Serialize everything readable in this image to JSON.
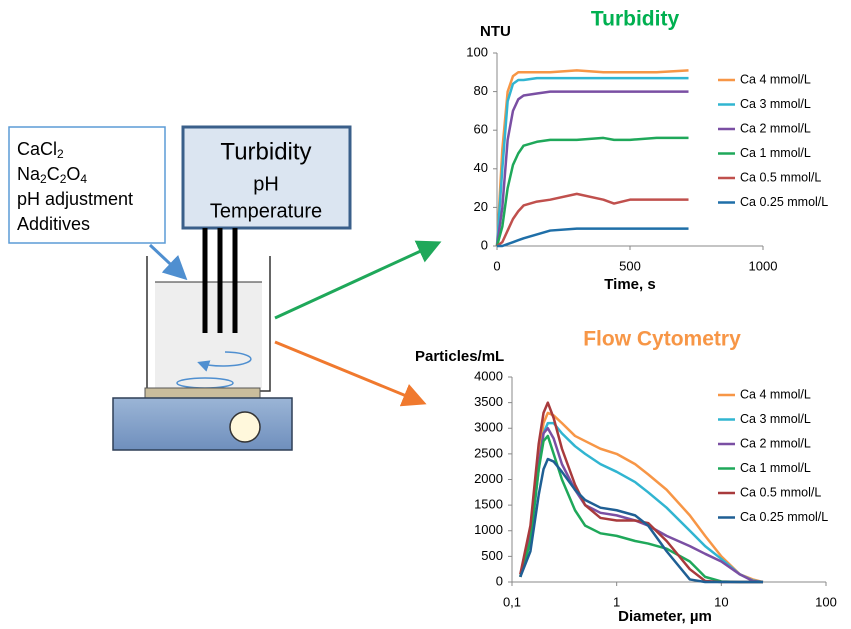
{
  "diagram": {
    "reagent_box": {
      "lines": [
        [
          "CaCl",
          "2"
        ],
        [
          "Na",
          "2",
          "C",
          "2",
          "O",
          "4"
        ],
        [
          "pH adjustment"
        ],
        [
          "Additives"
        ]
      ]
    },
    "probe_box": {
      "lines": [
        "Turbidity",
        "pH",
        "Temperature"
      ]
    }
  },
  "chart_data": [
    {
      "type": "line",
      "title": "Turbidity",
      "title_color": "#00b050",
      "y_label": "NTU",
      "x_label": "Time, s",
      "x": [
        0,
        20,
        40,
        60,
        80,
        100,
        150,
        200,
        300,
        400,
        440,
        500,
        600,
        720
      ],
      "xlim": [
        0,
        1000
      ],
      "xticks": [
        0,
        500,
        1000
      ],
      "ylim": [
        0,
        100
      ],
      "yticks": [
        0,
        20,
        40,
        60,
        80,
        100
      ],
      "legend": "upper right",
      "series": [
        {
          "name": "Ca 4 mmol/L",
          "color": "#f79646",
          "values": [
            0,
            50,
            80,
            88,
            90,
            90,
            90,
            90,
            91,
            90,
            90,
            90,
            90,
            91
          ]
        },
        {
          "name": "Ca 3 mmol/L",
          "color": "#31b5d1",
          "values": [
            0,
            40,
            75,
            84,
            86,
            86,
            87,
            87,
            87,
            87,
            87,
            87,
            87,
            87
          ]
        },
        {
          "name": "Ca 2 mmol/L",
          "color": "#7a4fa3",
          "values": [
            0,
            20,
            55,
            70,
            76,
            78,
            79,
            80,
            80,
            80,
            80,
            80,
            80,
            80
          ]
        },
        {
          "name": "Ca 1 mmol/L",
          "color": "#1fa85a",
          "values": [
            0,
            10,
            30,
            42,
            48,
            52,
            54,
            55,
            55,
            56,
            55,
            55,
            56,
            56
          ]
        },
        {
          "name": "Ca 0.5 mmol/L",
          "color": "#c0504d",
          "values": [
            0,
            2,
            8,
            14,
            18,
            21,
            23,
            24,
            27,
            24,
            22,
            24,
            24,
            24
          ]
        },
        {
          "name": "Ca 0.25 mmol/L",
          "color": "#1f6fa8",
          "values": [
            0,
            0,
            1,
            2,
            3,
            4,
            6,
            8,
            9,
            9,
            9,
            9,
            9,
            9
          ]
        }
      ]
    },
    {
      "type": "line",
      "title": "Flow Cytometry",
      "title_color": "#f79646",
      "y_label": "Particles/mL",
      "x_label": "Diameter, µm",
      "x": [
        0.12,
        0.15,
        0.18,
        0.2,
        0.22,
        0.25,
        0.3,
        0.4,
        0.5,
        0.7,
        1,
        1.5,
        2,
        3,
        5,
        7,
        10,
        15,
        20,
        25
      ],
      "x_log": true,
      "xlim": [
        0.1,
        100
      ],
      "xticks": [
        {
          "value": 0.1,
          "label": "0,1"
        },
        1,
        10,
        100
      ],
      "ylim": [
        0,
        4000
      ],
      "yticks": [
        0,
        500,
        1000,
        1500,
        2000,
        2500,
        3000,
        3500,
        4000
      ],
      "legend": "upper right",
      "series": [
        {
          "name": "Ca 4 mmol/L",
          "color": "#f79646",
          "values": [
            100,
            900,
            2400,
            3100,
            3300,
            3250,
            3100,
            2850,
            2750,
            2600,
            2500,
            2300,
            2100,
            1800,
            1300,
            900,
            500,
            150,
            50,
            0
          ]
        },
        {
          "name": "Ca 3 mmol/L",
          "color": "#31b5d1",
          "values": [
            100,
            800,
            2200,
            2900,
            3100,
            3100,
            2900,
            2650,
            2500,
            2300,
            2150,
            1950,
            1750,
            1450,
            1000,
            700,
            450,
            150,
            30,
            0
          ]
        },
        {
          "name": "Ca 2 mmol/L",
          "color": "#7a4fa3",
          "values": [
            100,
            900,
            2300,
            2900,
            3000,
            2800,
            2300,
            1800,
            1500,
            1350,
            1300,
            1200,
            1100,
            900,
            700,
            550,
            400,
            150,
            20,
            0
          ]
        },
        {
          "name": "Ca 1 mmol/L",
          "color": "#1fa85a",
          "values": [
            100,
            800,
            2200,
            2750,
            2850,
            2500,
            2000,
            1400,
            1100,
            950,
            900,
            800,
            750,
            650,
            400,
            100,
            10,
            0,
            0,
            0
          ]
        },
        {
          "name": "Ca 0.5 mmol/L",
          "color": "#a83a3c",
          "values": [
            150,
            1100,
            2700,
            3300,
            3500,
            3200,
            2600,
            1900,
            1500,
            1250,
            1200,
            1200,
            1150,
            800,
            250,
            20,
            0,
            0,
            0,
            0
          ]
        },
        {
          "name": "Ca 0.25 mmol/L",
          "color": "#1f5f94",
          "values": [
            100,
            600,
            1700,
            2200,
            2400,
            2350,
            2150,
            1800,
            1600,
            1450,
            1400,
            1300,
            1100,
            600,
            50,
            0,
            0,
            0,
            0,
            0
          ]
        }
      ]
    }
  ]
}
